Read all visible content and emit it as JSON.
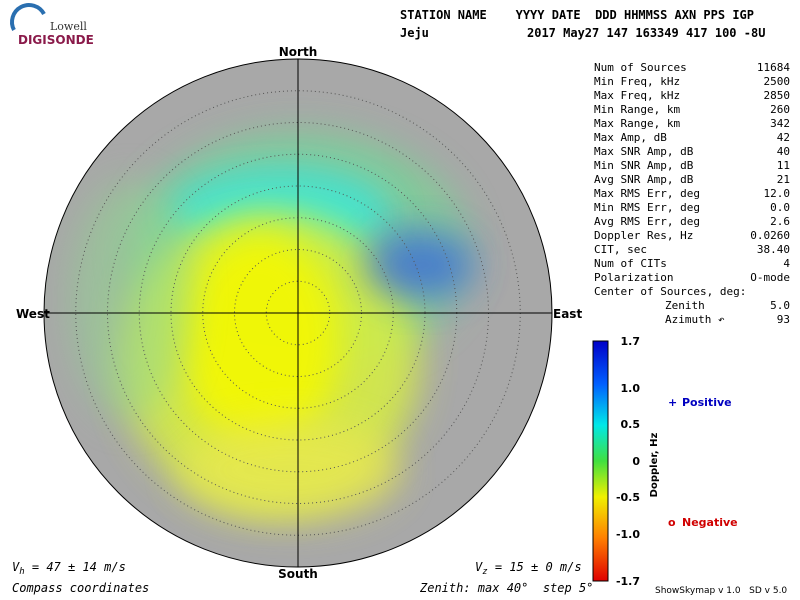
{
  "logo": {
    "top": "Lowell",
    "bottom": "DIGISONDE"
  },
  "header": {
    "columns": "STATION NAME    YYYY DATE  DDD HHMMSS AXN PPS IGP",
    "station": "Jeju",
    "values": "2017 May27 147 163349 417 100 -8U"
  },
  "compass": {
    "north": "North",
    "south": "South",
    "west": "West",
    "east": "East"
  },
  "stats": [
    [
      "Num of Sources",
      "11684"
    ],
    [
      "Min Freq, kHz",
      "2500"
    ],
    [
      "Max Freq, kHz",
      "2850"
    ],
    [
      "Min Range, km",
      "260"
    ],
    [
      "Max Range, km",
      "342"
    ],
    [
      "Max Amp, dB",
      "42"
    ],
    [
      "Max SNR Amp, dB",
      "40"
    ],
    [
      "Min SNR Amp, dB",
      "11"
    ],
    [
      "Avg SNR Amp, dB",
      "21"
    ],
    [
      "Max RMS Err, deg",
      "12.0"
    ],
    [
      "Min RMS Err, deg",
      "0.0"
    ],
    [
      "Avg RMS Err, deg",
      "2.6"
    ],
    [
      "Doppler Res, Hz",
      "0.0260"
    ],
    [
      "CIT, sec",
      "38.40"
    ],
    [
      "Num of CITs",
      "4"
    ],
    [
      "Polarization",
      "O-mode"
    ]
  ],
  "center": {
    "title": "Center of Sources, deg:",
    "zenith_label": "Zenith",
    "zenith": "5.0",
    "azimuth_label": "Azimuth ↶",
    "azimuth": "93"
  },
  "colorbar": {
    "title": "Doppler, Hz",
    "ticks": [
      "1.7",
      "1.0",
      "0.5",
      "0",
      "-0.5",
      "-1.0",
      "-1.7"
    ]
  },
  "legend": {
    "positive_symbol": "+",
    "positive": "Positive",
    "negative_symbol": "o",
    "negative": "Negative"
  },
  "footer": {
    "vh_symbol": "V",
    "vh_sub": "h",
    "vh_text": " = 47 ± 14 m/s",
    "vz_symbol": "V",
    "vz_sub": "z",
    "vz_text": " = 15 ± 0 m/s",
    "coords": "Compass coordinates",
    "zenith": "Zenith: max 40°  step 5°",
    "version": "ShowSkymap v 1.0   SD v 5.0"
  }
}
